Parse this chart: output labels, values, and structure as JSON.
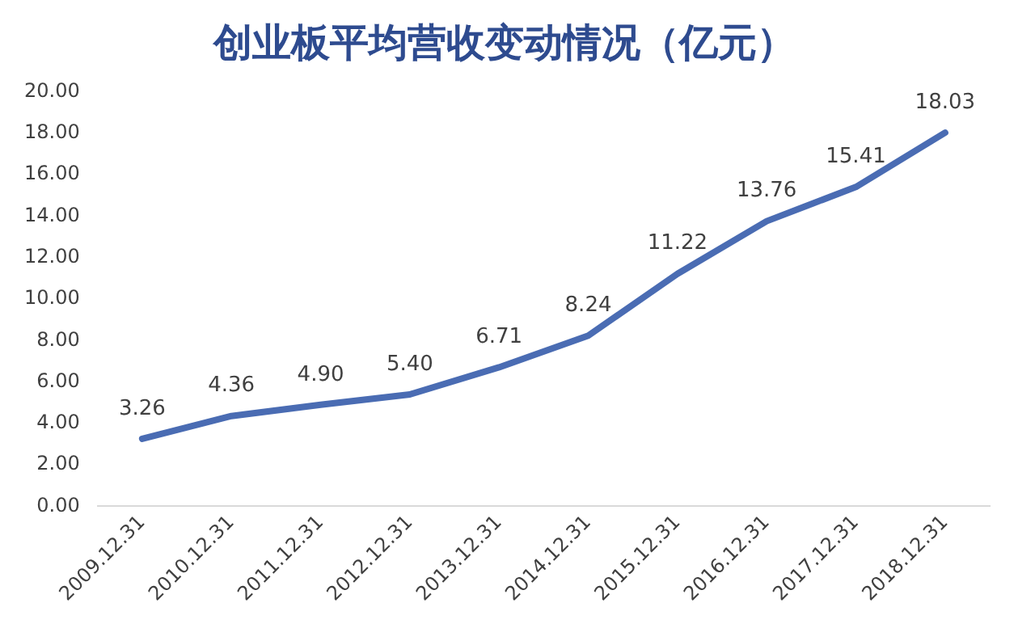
{
  "chart_data": {
    "type": "line",
    "title": "创业板平均营收变动情况（亿元）",
    "categories": [
      "2009.12.31",
      "2010.12.31",
      "2011.12.31",
      "2012.12.31",
      "2013.12.31",
      "2014.12.31",
      "2015.12.31",
      "2016.12.31",
      "2017.12.31",
      "2018.12.31"
    ],
    "series": [
      {
        "color": "#4a6cb3",
        "values": [
          3.26,
          4.36,
          4.9,
          5.4,
          6.71,
          8.24,
          11.22,
          13.76,
          15.41,
          18.03
        ],
        "value_labels": [
          "3.26",
          "4.36",
          "4.90",
          "5.40",
          "6.71",
          "8.24",
          "11.22",
          "13.76",
          "15.41",
          "18.03"
        ]
      }
    ],
    "ylim": [
      0,
      20
    ],
    "yticks": [
      {
        "value": 0,
        "label": "0.00"
      },
      {
        "value": 2,
        "label": "2.00"
      },
      {
        "value": 4,
        "label": "4.00"
      },
      {
        "value": 6,
        "label": "6.00"
      },
      {
        "value": 8,
        "label": "8.00"
      },
      {
        "value": 10,
        "label": "10.00"
      },
      {
        "value": 12,
        "label": "12.00"
      },
      {
        "value": 14,
        "label": "14.00"
      },
      {
        "value": 16,
        "label": "16.00"
      },
      {
        "value": 18,
        "label": "18.00"
      },
      {
        "value": 20,
        "label": "20.00"
      }
    ],
    "grid": false,
    "legend": false,
    "marker": "none"
  }
}
